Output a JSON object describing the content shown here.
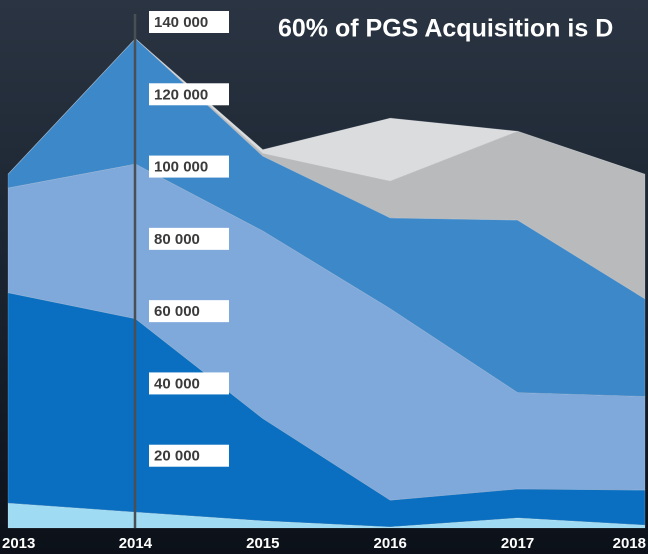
{
  "chart_data": {
    "type": "stacked-area",
    "title": "60% of PGS Acquisition is D",
    "categories": [
      "2013",
      "2014",
      "2015",
      "2016",
      "2017",
      "2018"
    ],
    "series": [
      {
        "color": "#9fdcf3",
        "values": [
          6900,
          4400,
          2000,
          300,
          2800,
          800
        ]
      },
      {
        "color": "#0a6fc0",
        "values": [
          58200,
          53500,
          28300,
          7400,
          8000,
          9700
        ]
      },
      {
        "color": "#7fa8db",
        "values": [
          29000,
          42800,
          51900,
          53000,
          26700,
          25900
        ]
      },
      {
        "color": "#3d88c9",
        "values": [
          3800,
          34700,
          20700,
          25100,
          47700,
          27000
        ]
      },
      {
        "color": "#b9babc",
        "values": [
          0,
          0,
          800,
          10200,
          24600,
          34500
        ]
      },
      {
        "color": "#dadcde",
        "values": [
          0,
          0,
          1000,
          17400,
          0,
          0
        ]
      }
    ],
    "ylim": [
      0,
      140000
    ],
    "yticks": [
      {
        "value": 20000,
        "label": "20 000"
      },
      {
        "value": 40000,
        "label": "40 000"
      },
      {
        "value": 60000,
        "label": "60 000"
      },
      {
        "value": 80000,
        "label": "80 000"
      },
      {
        "value": 100000,
        "label": "100 000"
      },
      {
        "value": 120000,
        "label": "120 000"
      },
      {
        "value": 140000,
        "label": "140 000"
      }
    ]
  }
}
